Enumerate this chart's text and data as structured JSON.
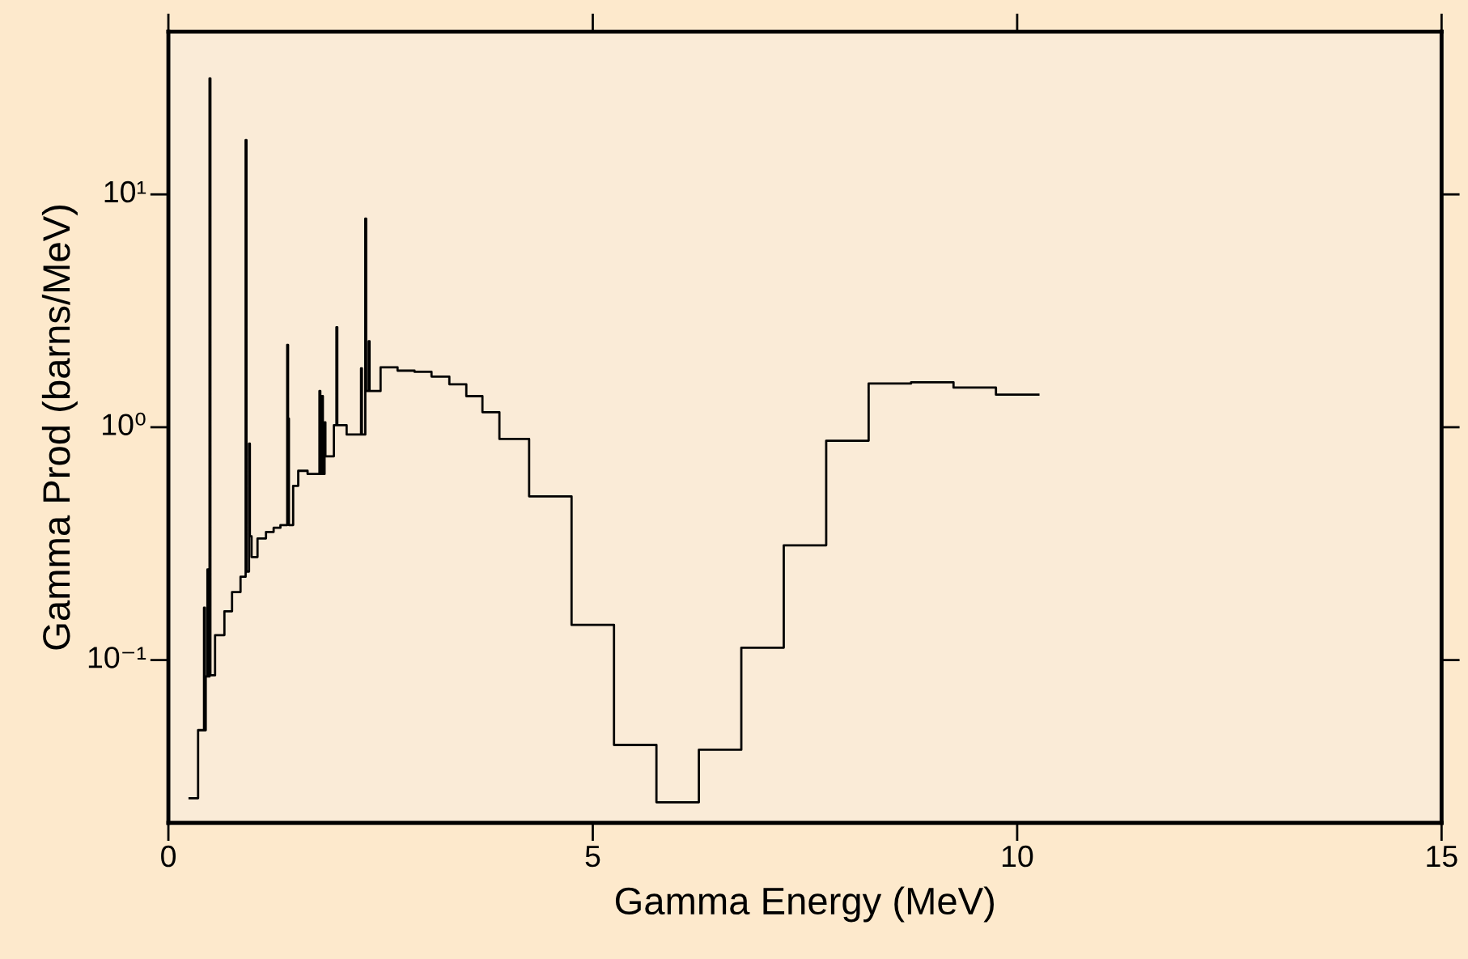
{
  "chart_data": {
    "type": "step",
    "xlabel": "Gamma Energy (MeV)",
    "ylabel": "Gamma Prod (barns/MeV)",
    "log": "y",
    "grid": false,
    "marker": "none",
    "line_style": "solid",
    "xlim": [
      0,
      15
    ],
    "xticks": [
      0,
      5,
      10,
      15
    ],
    "ylim": [
      0.02,
      50
    ],
    "yticks": [
      {
        "value": 0.1,
        "label": "10⁻¹"
      },
      {
        "value": 1,
        "label": "10⁰"
      },
      {
        "value": 10,
        "label": "10¹"
      }
    ],
    "series": [
      {
        "color": "#000000",
        "x": [
          0.25,
          0.35,
          0.42,
          0.43,
          0.44,
          0.46,
          0.47,
          0.485,
          0.495,
          0.55,
          0.66,
          0.75,
          0.85,
          0.91,
          0.92,
          0.95,
          0.96,
          0.98,
          1.05,
          1.15,
          1.24,
          1.32,
          1.4,
          1.41,
          1.42,
          1.47,
          1.53,
          1.64,
          1.78,
          1.79,
          1.81,
          1.82,
          1.84,
          1.85,
          1.95,
          1.98,
          1.99,
          2.1,
          2.27,
          2.28,
          2.32,
          2.33,
          2.36,
          2.37,
          2.5,
          2.7,
          2.9,
          3.1,
          3.31,
          3.51,
          3.7,
          3.9,
          4.25,
          4.75,
          5.25,
          5.75,
          6.25,
          6.75,
          7.25,
          7.75,
          8.25,
          8.75,
          9.25,
          9.75,
          10.25
        ],
        "values": [
          0.0255,
          0.05,
          0.168,
          0.05,
          0.085,
          0.245,
          0.085,
          31.5,
          0.086,
          0.128,
          0.162,
          0.196,
          0.228,
          17.1,
          0.24,
          0.85,
          0.34,
          0.277,
          0.333,
          0.355,
          0.37,
          0.38,
          2.26,
          1.09,
          0.38,
          0.56,
          0.65,
          0.63,
          1.43,
          0.63,
          1.36,
          0.63,
          1.05,
          0.75,
          1.02,
          2.69,
          1.02,
          0.93,
          1.79,
          0.93,
          7.87,
          1.43,
          2.34,
          1.43,
          1.81,
          1.75,
          1.73,
          1.65,
          1.53,
          1.36,
          1.16,
          0.89,
          0.505,
          0.1416,
          0.0432,
          0.0245,
          0.0412,
          0.113,
          0.311,
          0.875,
          1.54,
          1.56,
          1.48,
          1.38,
          1.38
        ]
      }
    ]
  }
}
